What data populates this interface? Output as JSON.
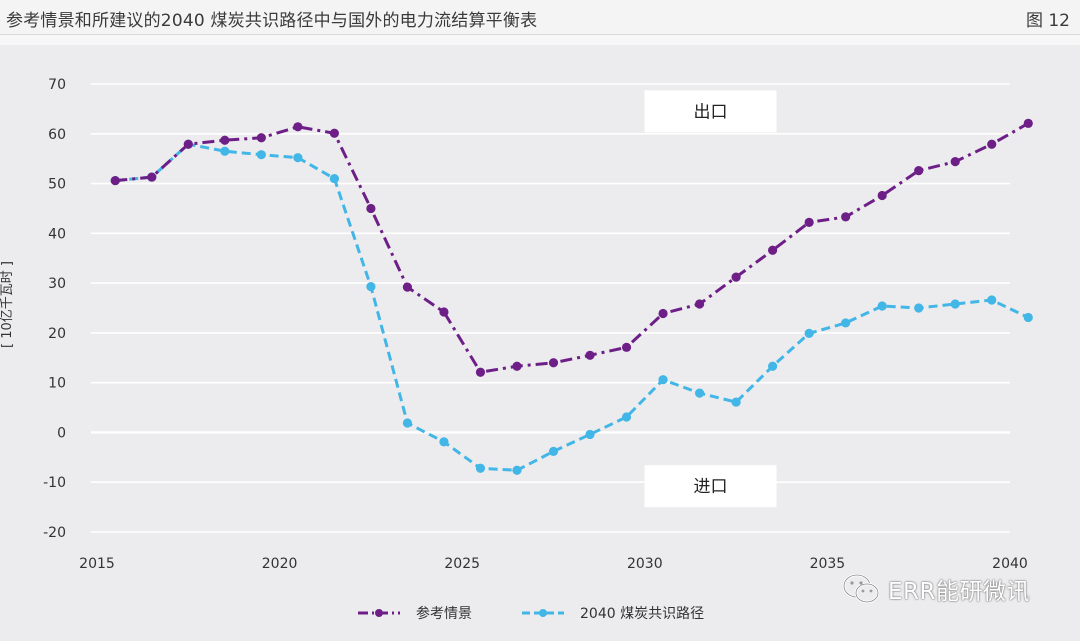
{
  "header": {
    "title": "参考情景和所建议的2040 煤炭共识路径中与国外的电力流结算平衡表",
    "figure_number": "图 12"
  },
  "watermark": {
    "text": "ERR能研微讯",
    "icon": "wechat-icon"
  },
  "colors": {
    "reference": "#6e1f87",
    "pathway": "#42b6e6",
    "grid": "#ffffff",
    "annotation_box": "#ffffff"
  },
  "chart_data": {
    "type": "line",
    "title": "参考情景和所建议的2040 煤炭共识路径中与国外的电力流结算平衡表",
    "xlabel": "",
    "ylabel": "[ 10亿千瓦时 ]",
    "xlim": [
      2015,
      2040
    ],
    "ylim": [
      -20,
      70
    ],
    "x_ticks": [
      2015,
      2020,
      2025,
      2030,
      2035,
      2040
    ],
    "y_ticks": [
      70,
      60,
      50,
      40,
      30,
      20,
      10,
      0,
      -10,
      -20
    ],
    "grid": "horizontal",
    "legend_position": "bottom",
    "annotations": [
      {
        "text": "出口",
        "x": 2031.8,
        "y": 64.5
      },
      {
        "text": "进口",
        "x": 2031.8,
        "y": -10.8
      }
    ],
    "x": [
      2015.5,
      2016.5,
      2017.5,
      2018.5,
      2019.5,
      2020.5,
      2021.5,
      2022.5,
      2023.5,
      2024.5,
      2025.5,
      2026.5,
      2027.5,
      2028.5,
      2029.5,
      2030.5,
      2031.5,
      2032.5,
      2033.5,
      2034.5,
      2035.5,
      2036.5,
      2037.5,
      2038.5,
      2039.5,
      2040.5
    ],
    "series": [
      {
        "name": "参考情景",
        "style": "dash-dot",
        "values": [
          50.6,
          51.3,
          57.9,
          58.7,
          59.2,
          61.4,
          60.1,
          45.0,
          29.2,
          24.2,
          12.1,
          13.3,
          14.0,
          15.5,
          17.1,
          23.9,
          25.8,
          31.2,
          36.6,
          42.2,
          43.3,
          47.6,
          52.6,
          54.4,
          57.9,
          62.1
        ]
      },
      {
        "name": "2040 煤炭共识路径",
        "style": "dashed",
        "values": [
          50.6,
          51.3,
          57.9,
          56.5,
          55.8,
          55.2,
          51.0,
          29.3,
          1.9,
          -1.9,
          -7.2,
          -7.6,
          -3.8,
          -0.4,
          3.1,
          10.6,
          7.9,
          6.1,
          13.3,
          19.9,
          22.0,
          25.4,
          25.0,
          25.8,
          26.6,
          23.1
        ]
      }
    ]
  }
}
